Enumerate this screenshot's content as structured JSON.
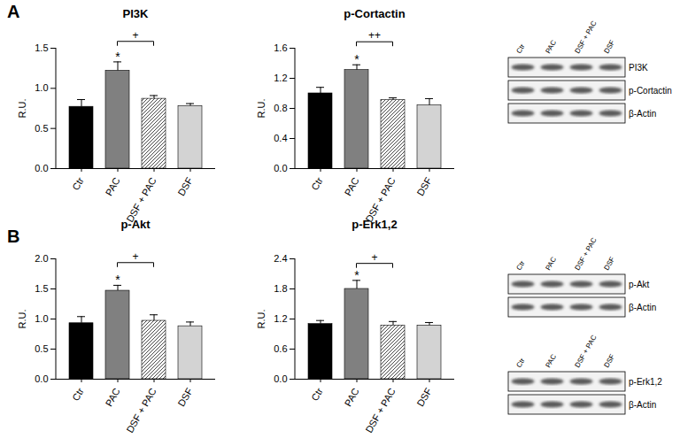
{
  "panel_labels": [
    "A",
    "B"
  ],
  "chart_data": [
    {
      "type": "bar",
      "title": "PI3K",
      "ylabel": "R.U.",
      "categories": [
        "Ctr",
        "PAC",
        "DSF + PAC",
        "DSF"
      ],
      "values": [
        0.77,
        1.22,
        0.87,
        0.78
      ],
      "errors": [
        0.09,
        0.11,
        0.04,
        0.03
      ],
      "colors": [
        "#000000",
        "#808080",
        "#ffffff",
        "#d3d3d3"
      ],
      "ylim": [
        0,
        1.5
      ],
      "yticks": [
        {
          "value": 0,
          "label": "0.0"
        },
        0.5,
        {
          "value": 1,
          "label": "1.0"
        },
        1.5
      ],
      "annotations": [
        {
          "category": "PAC",
          "text": "*"
        }
      ],
      "comparisons": [
        {
          "from": "PAC",
          "to": "DSF + PAC",
          "label": "+",
          "y": 1.58
        }
      ]
    },
    {
      "type": "bar",
      "title": "p-Cortactin",
      "ylabel": "R.U.",
      "categories": [
        "Ctr",
        "PAC",
        "DSF + PAC",
        "DSF"
      ],
      "values": [
        1.0,
        1.31,
        0.91,
        0.84
      ],
      "errors": [
        0.08,
        0.07,
        0.03,
        0.09
      ],
      "colors": [
        "#000000",
        "#808080",
        "#ffffff",
        "#d3d3d3"
      ],
      "ylim": [
        0,
        1.6
      ],
      "yticks": [
        {
          "value": 0,
          "label": "0.0"
        },
        0.4,
        0.8,
        1.2,
        1.6
      ],
      "annotations": [
        {
          "category": "PAC",
          "text": "*"
        }
      ],
      "comparisons": [
        {
          "from": "PAC",
          "to": "DSF + PAC",
          "label": "++",
          "y": 1.68
        }
      ]
    },
    {
      "type": "bar",
      "title": "p-Akt",
      "ylabel": "R.U.",
      "categories": [
        "Ctr",
        "PAC",
        "DSF + PAC",
        "DSF"
      ],
      "values": [
        0.93,
        1.47,
        0.97,
        0.88
      ],
      "errors": [
        0.11,
        0.09,
        0.1,
        0.07
      ],
      "colors": [
        "#000000",
        "#808080",
        "#ffffff",
        "#d3d3d3"
      ],
      "ylim": [
        0,
        2.0
      ],
      "yticks": [
        {
          "value": 0,
          "label": "0.0"
        },
        0.5,
        {
          "value": 1,
          "label": "1.0"
        },
        1.5,
        {
          "value": 2,
          "label": "2.0"
        }
      ],
      "annotations": [
        {
          "category": "PAC",
          "text": "*"
        }
      ],
      "comparisons": [
        {
          "from": "PAC",
          "to": "DSF + PAC",
          "label": "+",
          "y": 1.93
        }
      ]
    },
    {
      "type": "bar",
      "title": "p-Erk1,2",
      "ylabel": "R.U.",
      "categories": [
        "Ctr",
        "PAC",
        "DSF + PAC",
        "DSF"
      ],
      "values": [
        1.1,
        1.8,
        1.07,
        1.07
      ],
      "errors": [
        0.07,
        0.17,
        0.08,
        0.06
      ],
      "colors": [
        "#000000",
        "#808080",
        "#ffffff",
        "#d3d3d3"
      ],
      "ylim": [
        0,
        2.4
      ],
      "yticks": [
        {
          "value": 0,
          "label": "0.0"
        },
        0.6,
        1.2,
        1.8,
        2.4
      ],
      "annotations": [
        {
          "category": "PAC",
          "text": "*"
        }
      ],
      "comparisons": [
        {
          "from": "PAC",
          "to": "DSF + PAC",
          "label": "+",
          "y": 2.3
        }
      ]
    }
  ],
  "blots": [
    {
      "lanes": [
        "Ctr",
        "PAC",
        "DSF + PAC",
        "DSF"
      ],
      "rows": [
        "PI3K",
        "p-Cortactin",
        "β-Actin"
      ]
    },
    {
      "lanes": [
        "Ctr",
        "PAC",
        "DSF + PAC",
        "DSF"
      ],
      "rows": [
        "p-Akt",
        "β-Actin"
      ]
    },
    {
      "lanes": [
        "Ctr",
        "PAC",
        "DSF + PAC",
        "DSF"
      ],
      "rows": [
        "p-Erk1,2",
        "β-Actin"
      ]
    }
  ]
}
